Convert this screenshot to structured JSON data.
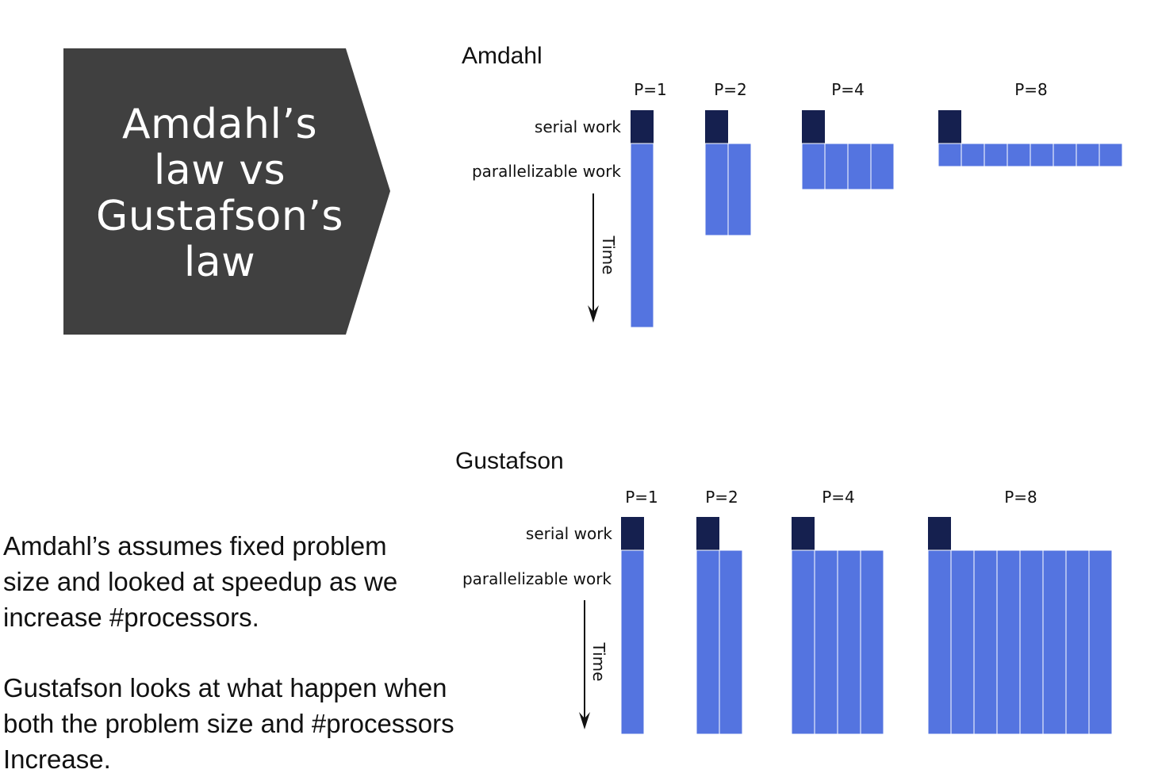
{
  "title": {
    "lines": [
      "Amdahl’s",
      "law vs",
      "Gustafson’s",
      "law"
    ]
  },
  "text": {
    "amdahl_lines": [
      "Amdahl’s assumes  fixed problem",
      "size and looked at speedup as we",
      "increase #processors."
    ],
    "gustafson_lines": [
      "Gustafson looks at what happen when",
      "both the problem size and #processors",
      "Increase."
    ]
  },
  "colors": {
    "serial": "#15204f",
    "parallel": "#5474e0",
    "banner": "#404040"
  },
  "panels": [
    {
      "id": "amdahl",
      "name": "Amdahl",
      "serial_label": "serial work",
      "parallel_label": "parallelizable work",
      "time_label": "Time",
      "groups": [
        {
          "label": "P=1",
          "processors": 1,
          "parallel_blocks": 8
        },
        {
          "label": "P=2",
          "processors": 2,
          "parallel_blocks": 4
        },
        {
          "label": "P=4",
          "processors": 4,
          "parallel_blocks": 2
        },
        {
          "label": "P=8",
          "processors": 8,
          "parallel_blocks": 1
        }
      ]
    },
    {
      "id": "gustafson",
      "name": "Gustafson",
      "serial_label": "serial work",
      "parallel_label": "parallelizable work",
      "time_label": "Time",
      "groups": [
        {
          "label": "P=1",
          "processors": 1,
          "parallel_blocks": 8
        },
        {
          "label": "P=2",
          "processors": 2,
          "parallel_blocks": 8
        },
        {
          "label": "P=4",
          "processors": 4,
          "parallel_blocks": 8
        },
        {
          "label": "P=8",
          "processors": 8,
          "parallel_blocks": 8
        }
      ]
    }
  ]
}
